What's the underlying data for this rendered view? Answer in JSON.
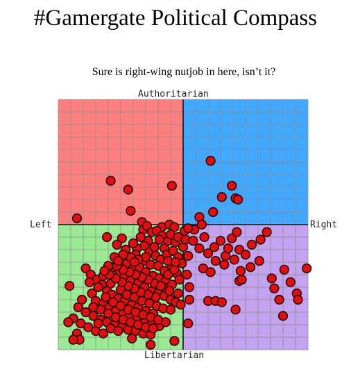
{
  "title": "#Gamergate Political Compass",
  "chart_data": {
    "type": "scatter",
    "title": "#Gamergate Political Compass",
    "subtitle": "Sure is right-wing nutjob in here, isn’t it?",
    "axis_labels": {
      "top": "Authoritarian",
      "bottom": "Libertarian",
      "left": "Left",
      "right": "Right"
    },
    "xlim": [
      -10,
      10
    ],
    "ylim": [
      -10,
      10
    ],
    "grid": true,
    "quadrant_colors": {
      "authoritarian_left": "#ff7f7f",
      "authoritarian_right": "#40a8ff",
      "libertarian_left": "#9aea92",
      "libertarian_right": "#c3a3f0"
    },
    "point_color": "#e01010",
    "point_stroke": "#2a0000",
    "points": [
      [
        2.2,
        5.1
      ],
      [
        -5.8,
        3.5
      ],
      [
        -4.4,
        2.8
      ],
      [
        -4.2,
        1.1
      ],
      [
        -0.9,
        3.1
      ],
      [
        3.1,
        2.2
      ],
      [
        3.9,
        3.1
      ],
      [
        4.2,
        2.1
      ],
      [
        4.4,
        2.0
      ],
      [
        1.3,
        0.6
      ],
      [
        2.4,
        1.0
      ],
      [
        -8.5,
        0.5
      ],
      [
        1.5,
        0.0
      ],
      [
        0.9,
        -0.4
      ],
      [
        -6.1,
        -1.0
      ],
      [
        -1.7,
        -0.2
      ],
      [
        -1.1,
        0.0
      ],
      [
        -0.7,
        -0.2
      ],
      [
        0.1,
        -0.5
      ],
      [
        -3.3,
        0.2
      ],
      [
        -3.2,
        -0.4
      ],
      [
        -2.9,
        -0.1
      ],
      [
        -2.5,
        -0.6
      ],
      [
        -2.1,
        -0.5
      ],
      [
        -1.7,
        -0.9
      ],
      [
        -2.8,
        -1.3
      ],
      [
        -3.1,
        -1.7
      ],
      [
        -1.9,
        -1.2
      ],
      [
        -1.2,
        -1.3
      ],
      [
        -0.6,
        -1.4
      ],
      [
        -1.5,
        -1.9
      ],
      [
        -4.9,
        -1.1
      ],
      [
        -5.3,
        -1.6
      ],
      [
        -4.6,
        -2.0
      ],
      [
        -3.7,
        -1.9
      ],
      [
        -3.8,
        -2.4
      ],
      [
        -2.7,
        -2.2
      ],
      [
        -2.2,
        -2.5
      ],
      [
        -1.8,
        -2.8
      ],
      [
        -1.3,
        -2.4
      ],
      [
        -0.8,
        -2.1
      ],
      [
        -0.4,
        -2.6
      ],
      [
        0.0,
        -1.8
      ],
      [
        0.4,
        -2.5
      ],
      [
        -3.1,
        -2.9
      ],
      [
        -2.6,
        -3.2
      ],
      [
        -2.0,
        -3.3
      ],
      [
        -1.5,
        -3.7
      ],
      [
        -0.9,
        -3.3
      ],
      [
        -0.5,
        -3.9
      ],
      [
        -4.5,
        -3.1
      ],
      [
        -4.1,
        -3.6
      ],
      [
        -3.5,
        -3.4
      ],
      [
        -3.0,
        -3.8
      ],
      [
        -2.4,
        -4.1
      ],
      [
        -1.9,
        -4.3
      ],
      [
        -1.4,
        -4.5
      ],
      [
        -0.9,
        -4.8
      ],
      [
        -0.3,
        -4.4
      ],
      [
        0.3,
        -4.0
      ],
      [
        -5.6,
        -3.4
      ],
      [
        -5.1,
        -3.9
      ],
      [
        -4.7,
        -4.2
      ],
      [
        -4.2,
        -4.5
      ],
      [
        -3.6,
        -4.7
      ],
      [
        -3.1,
        -5.0
      ],
      [
        -2.5,
        -5.3
      ],
      [
        -2.0,
        -5.5
      ],
      [
        -1.5,
        -5.7
      ],
      [
        -1.0,
        -6.0
      ],
      [
        -0.4,
        -5.5
      ],
      [
        0.5,
        -5.0
      ],
      [
        -7.8,
        -3.5
      ],
      [
        -7.4,
        -4.0
      ],
      [
        -6.9,
        -4.4
      ],
      [
        -6.5,
        -4.8
      ],
      [
        -6.1,
        -5.3
      ],
      [
        -5.7,
        -5.6
      ],
      [
        -5.2,
        -5.9
      ],
      [
        -4.7,
        -6.1
      ],
      [
        -4.1,
        -6.4
      ],
      [
        -3.6,
        -6.6
      ],
      [
        -3.0,
        -6.9
      ],
      [
        -2.4,
        -7.1
      ],
      [
        -7.3,
        -5.5
      ],
      [
        -7.0,
        -6.1
      ],
      [
        -6.4,
        -6.3
      ],
      [
        -5.9,
        -6.6
      ],
      [
        -5.4,
        -6.9
      ],
      [
        -4.8,
        -7.1
      ],
      [
        -4.3,
        -7.3
      ],
      [
        -3.7,
        -7.5
      ],
      [
        -3.1,
        -7.6
      ],
      [
        -2.5,
        -7.9
      ],
      [
        -1.9,
        -8.1
      ],
      [
        -1.4,
        -7.8
      ],
      [
        -8.1,
        -6.0
      ],
      [
        -8.4,
        -6.6
      ],
      [
        -7.8,
        -7.0
      ],
      [
        -7.2,
        -7.3
      ],
      [
        -6.6,
        -7.6
      ],
      [
        -6.1,
        -7.8
      ],
      [
        -5.5,
        -8.0
      ],
      [
        -4.9,
        -8.2
      ],
      [
        -4.4,
        -8.4
      ],
      [
        -3.8,
        -8.5
      ],
      [
        -3.2,
        -8.7
      ],
      [
        -2.6,
        -8.8
      ],
      [
        -8.8,
        -7.5
      ],
      [
        -8.2,
        -7.9
      ],
      [
        -7.6,
        -8.2
      ],
      [
        -7.0,
        -8.5
      ],
      [
        -6.4,
        -8.7
      ],
      [
        -8.5,
        -8.7
      ],
      [
        -4.1,
        -9.1
      ],
      [
        -2.6,
        -9.6
      ],
      [
        -8.3,
        -9.2
      ],
      [
        -0.7,
        -9.3
      ],
      [
        -6.0,
        -3.3
      ],
      [
        -5.5,
        -2.6
      ],
      [
        -4.0,
        -1.5
      ],
      [
        -3.4,
        -1.0
      ],
      [
        -6.4,
        -4.1
      ],
      [
        -5.8,
        -4.7
      ],
      [
        -5.0,
        -5.2
      ],
      [
        -4.5,
        -5.6
      ],
      [
        -3.9,
        -5.8
      ],
      [
        -3.3,
        -6.1
      ],
      [
        -2.7,
        -6.3
      ],
      [
        -2.1,
        -6.5
      ],
      [
        -1.6,
        -6.7
      ],
      [
        -1.0,
        -6.8
      ],
      [
        -6.8,
        -5.0
      ],
      [
        -7.5,
        -4.6
      ],
      [
        -6.2,
        -5.8
      ],
      [
        -5.6,
        -6.2
      ],
      [
        -5.0,
        -6.5
      ],
      [
        -4.4,
        -6.8
      ],
      [
        -3.8,
        -7.0
      ],
      [
        -3.2,
        -7.2
      ],
      [
        -2.6,
        -7.4
      ],
      [
        -2.0,
        -7.6
      ],
      [
        -6.6,
        -6.8
      ],
      [
        -6.0,
        -7.1
      ],
      [
        -5.4,
        -7.4
      ],
      [
        -4.8,
        -7.6
      ],
      [
        -4.2,
        -7.8
      ],
      [
        -3.6,
        -8.0
      ],
      [
        -3.0,
        -8.2
      ],
      [
        -2.4,
        -8.3
      ],
      [
        -7.2,
        -6.6
      ],
      [
        -6.8,
        -7.9
      ],
      [
        -5.8,
        -8.3
      ],
      [
        -5.2,
        -8.5
      ],
      [
        -1.6,
        -5.0
      ],
      [
        -1.1,
        -5.3
      ],
      [
        -0.6,
        -6.2
      ],
      [
        -0.2,
        -6.4
      ],
      [
        -2.2,
        -5.8
      ],
      [
        -2.8,
        -5.6
      ],
      [
        -3.4,
        -5.4
      ],
      [
        -3.9,
        -5.1
      ],
      [
        -4.4,
        -4.9
      ],
      [
        -4.9,
        -4.6
      ],
      [
        -5.4,
        -4.3
      ],
      [
        -5.9,
        -4.0
      ],
      [
        -6.3,
        -3.7
      ],
      [
        -2.3,
        -4.7
      ],
      [
        -1.8,
        -4.9
      ],
      [
        -1.2,
        -4.0
      ],
      [
        -0.7,
        -3.6
      ],
      [
        -0.1,
        -3.1
      ],
      [
        -2.8,
        -4.4
      ],
      [
        -3.3,
        -4.2
      ],
      [
        -3.8,
        -4.0
      ],
      [
        -4.3,
        -3.8
      ],
      [
        -4.8,
        -3.6
      ],
      [
        -5.3,
        -3.3
      ],
      [
        -3.0,
        -2.6
      ],
      [
        -2.3,
        -1.8
      ],
      [
        -1.0,
        -0.8
      ],
      [
        -0.4,
        -1.0
      ],
      [
        0.2,
        -1.2
      ],
      [
        -3.6,
        -2.8
      ],
      [
        -4.2,
        -2.6
      ],
      [
        -4.8,
        -2.4
      ],
      [
        -5.2,
        -2.9
      ],
      [
        -1.2,
        -2.9
      ],
      [
        -0.6,
        -3.0
      ],
      [
        -3.9,
        -3.0
      ],
      [
        0.4,
        -0.3
      ],
      [
        0.8,
        -1.3
      ],
      [
        1.3,
        -1.9
      ],
      [
        1.7,
        -1.0
      ],
      [
        2.0,
        -2.3
      ],
      [
        2.5,
        -1.8
      ],
      [
        3.0,
        -1.3
      ],
      [
        3.4,
        -2.5
      ],
      [
        3.6,
        -1.9
      ],
      [
        3.9,
        -1.1
      ],
      [
        4.1,
        -2.8
      ],
      [
        2.6,
        -2.9
      ],
      [
        1.6,
        -3.5
      ],
      [
        2.2,
        -3.8
      ],
      [
        3.3,
        -3.2
      ],
      [
        4.5,
        -2.0
      ],
      [
        5.0,
        -2.4
      ],
      [
        5.5,
        -1.6
      ],
      [
        6.2,
        -1.2
      ],
      [
        6.1,
        -2.9
      ],
      [
        5.4,
        -3.4
      ],
      [
        4.6,
        -3.7
      ],
      [
        6.7,
        -0.6
      ],
      [
        4.3,
        -0.6
      ],
      [
        7.1,
        -4.3
      ],
      [
        7.3,
        -5.1
      ],
      [
        8.1,
        -3.6
      ],
      [
        8.6,
        -4.6
      ],
      [
        4.5,
        -4.5
      ],
      [
        4.7,
        -4.4
      ],
      [
        9.9,
        -3.5
      ],
      [
        9.1,
        -5.5
      ],
      [
        9.2,
        -6.0
      ],
      [
        7.7,
        -6.0
      ],
      [
        8.0,
        -7.3
      ],
      [
        0.5,
        -6.0
      ],
      [
        2.0,
        -6.1
      ],
      [
        2.6,
        -6.1
      ],
      [
        3.1,
        -6.2
      ],
      [
        4.2,
        -6.8
      ],
      [
        0.4,
        -7.9
      ],
      [
        -9.1,
        -4.9
      ],
      [
        -9.2,
        -7.8
      ],
      [
        -8.8,
        -9.2
      ]
    ]
  }
}
